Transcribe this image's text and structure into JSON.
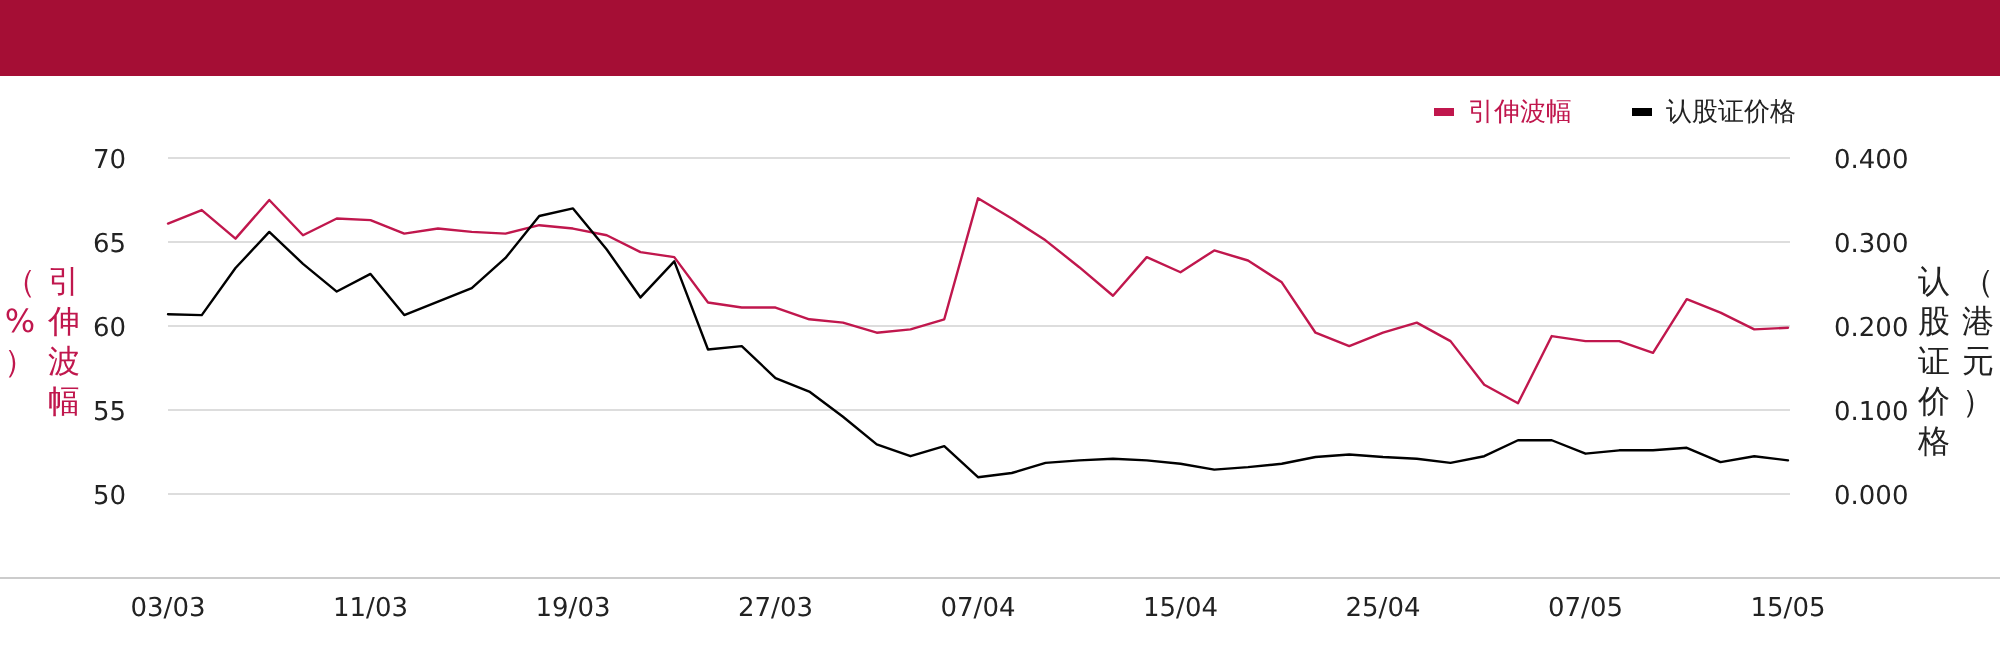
{
  "chart_data": {
    "type": "line",
    "categories": [
      "03/03",
      null,
      null,
      null,
      null,
      null,
      "11/03",
      null,
      null,
      null,
      null,
      null,
      "19/03",
      null,
      null,
      null,
      null,
      null,
      "27/03",
      null,
      null,
      null,
      null,
      null,
      "07/04",
      null,
      null,
      null,
      null,
      null,
      "15/04",
      null,
      null,
      null,
      null,
      null,
      "25/04",
      null,
      null,
      null,
      null,
      null,
      "07/05",
      null,
      null,
      null,
      null,
      null,
      "15/05"
    ],
    "series": [
      {
        "name": "引伸波幅",
        "color": "#c0174d",
        "values": [
          66.1,
          66.9,
          65.2,
          67.5,
          65.4,
          66.4,
          66.3,
          65.5,
          65.8,
          65.6,
          65.5,
          66.0,
          65.8,
          65.4,
          64.4,
          64.1,
          61.4,
          61.1,
          61.1,
          60.4,
          60.2,
          59.6,
          59.8,
          60.4,
          67.6,
          66.4,
          65.1,
          63.5,
          61.8,
          64.1,
          63.2,
          64.5,
          63.9,
          62.6,
          59.6,
          58.8,
          59.6,
          60.2,
          59.1,
          56.5,
          55.4,
          59.4,
          59.1,
          59.1,
          58.4,
          61.6,
          60.8,
          59.8,
          59.9
        ]
      },
      {
        "name": "认股证价格",
        "color": "#000000",
        "axis": "y2",
        "values": [
          0.214,
          0.213,
          0.269,
          0.312,
          0.274,
          0.241,
          0.262,
          0.213,
          0.229,
          0.245,
          0.281,
          0.331,
          0.34,
          0.291,
          0.234,
          0.277,
          0.172,
          0.176,
          0.138,
          0.122,
          0.092,
          0.059,
          0.045,
          0.057,
          0.02,
          0.025,
          0.037,
          0.04,
          0.042,
          0.04,
          0.036,
          0.029,
          0.032,
          0.036,
          0.044,
          0.047,
          0.044,
          0.042,
          0.037,
          0.045,
          0.064,
          0.064,
          0.048,
          0.052,
          0.052,
          0.055,
          0.038,
          0.045,
          0.04
        ]
      }
    ],
    "ylim": [
      45,
      70
    ],
    "yticks": [
      50,
      55,
      60,
      65,
      70
    ],
    "y2lim": [
      -0.1,
      0.4
    ],
    "y2ticks": [
      {
        "value": 0,
        "label": "0.000"
      },
      {
        "value": 0.1,
        "label": "0.100"
      },
      {
        "value": 0.2,
        "label": "0.200"
      },
      {
        "value": 0.3,
        "label": "0.300"
      },
      {
        "value": 0.4,
        "label": "0.400"
      }
    ],
    "ylabel": "引伸波幅（%）",
    "y2label": "认股证价格（港元）",
    "grid": "y",
    "legend": "top right"
  }
}
